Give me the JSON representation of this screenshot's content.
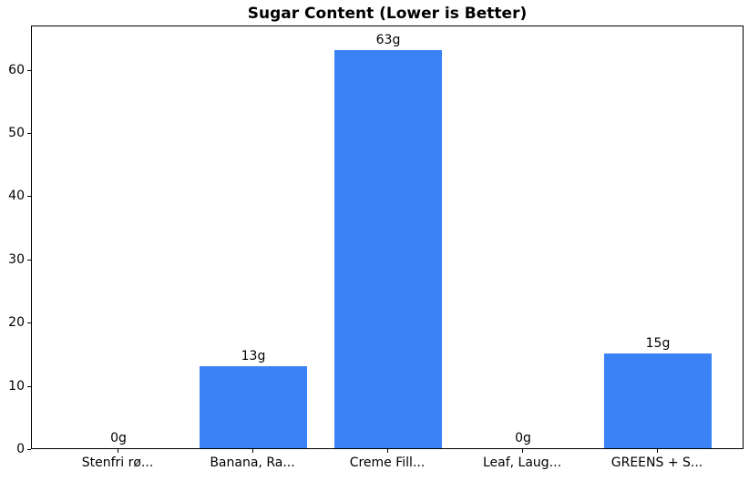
{
  "chart_data": {
    "type": "bar",
    "title": "Sugar Content (Lower is Better)",
    "categories": [
      "Stenfri rø...",
      "Banana, Ra...",
      "Creme Fill...",
      "Leaf, Laug...",
      "GREENS + S..."
    ],
    "values": [
      0,
      13,
      63,
      0,
      15
    ],
    "value_labels": [
      "0g",
      "13g",
      "63g",
      "0g",
      "15g"
    ],
    "xlabel": "",
    "ylabel": "",
    "ylim": [
      0,
      67
    ],
    "yticks": [
      0,
      10,
      20,
      30,
      40,
      50,
      60
    ],
    "grid": false,
    "legend": null,
    "bar_color": "#3b82f6",
    "axis_color": "#000000",
    "background_color": "#ffffff",
    "text_color": "#000000"
  }
}
